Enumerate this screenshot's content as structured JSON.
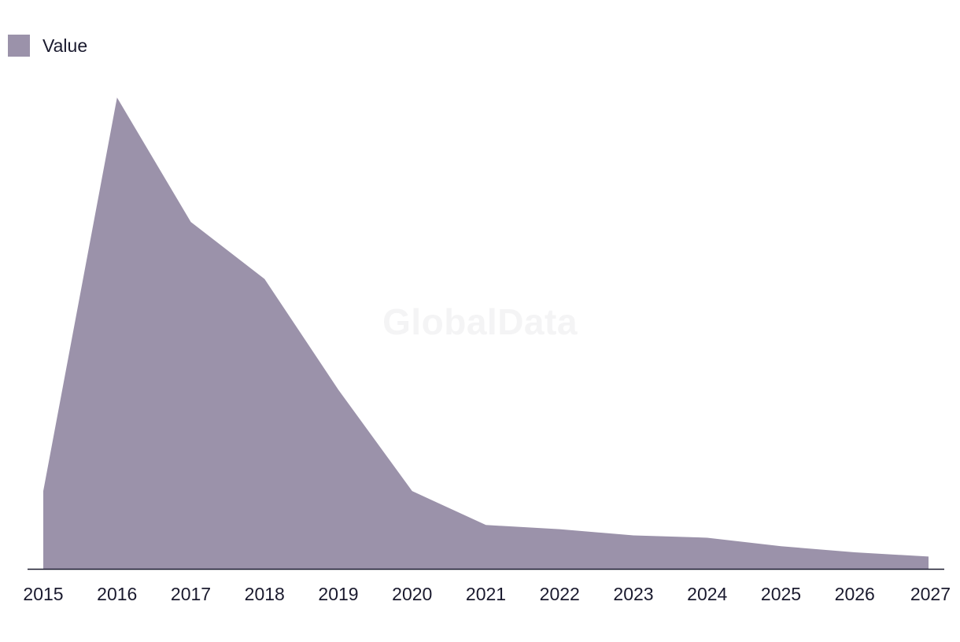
{
  "legend": {
    "label": "Value"
  },
  "watermark": "GlobalData",
  "colors": {
    "area": "#9b92aa",
    "axis": "#1a1a2e",
    "text": "#1a1a2e"
  },
  "chart_data": {
    "type": "area",
    "title": "",
    "xlabel": "",
    "ylabel": "",
    "legend_position": "top-left",
    "grid": false,
    "ylim": [
      0,
      100
    ],
    "categories": [
      "2015",
      "2016",
      "2017",
      "2018",
      "2019",
      "2020",
      "2021",
      "2022",
      "2023",
      "2024",
      "2025",
      "2026",
      "2027"
    ],
    "series": [
      {
        "name": "Value",
        "values": [
          16.5,
          100,
          73.6,
          61.5,
          38.0,
          16.5,
          9.3,
          8.4,
          7.1,
          6.6,
          4.8,
          3.5,
          2.6
        ]
      }
    ]
  }
}
